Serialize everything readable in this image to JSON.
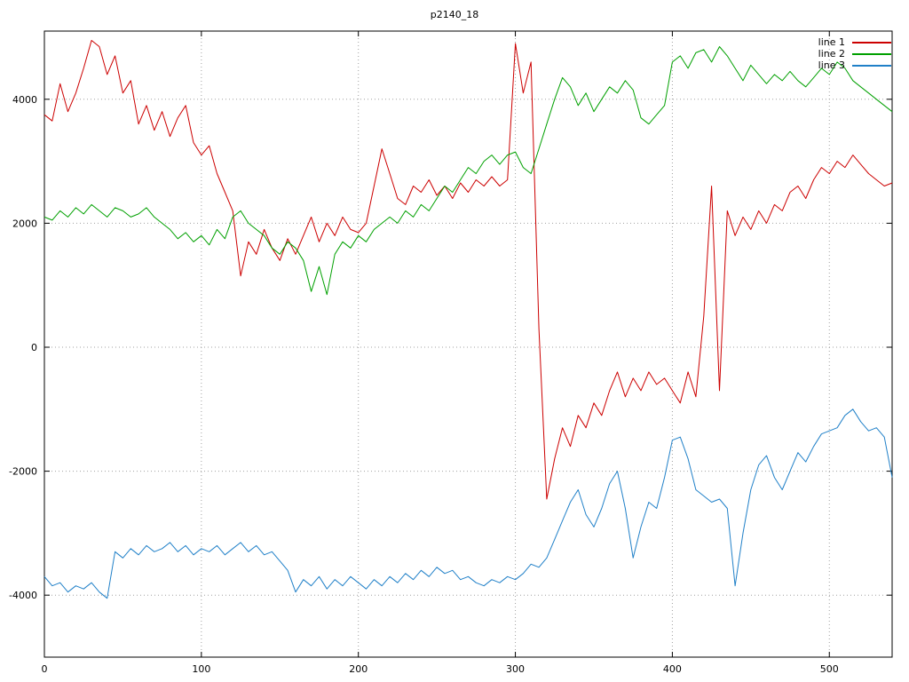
{
  "chart_data": {
    "type": "line",
    "title": "p2140_18",
    "xlabel": "",
    "ylabel": "",
    "xlim": [
      0,
      540
    ],
    "ylim": [
      -5000,
      5100
    ],
    "x_ticks": [
      0,
      100,
      200,
      300,
      400,
      500
    ],
    "y_ticks": [
      -4000,
      -2000,
      0,
      2000,
      4000
    ],
    "grid": "dotted",
    "grid_color": "#a0a0a0",
    "border_color": "#000000",
    "background": "#ffffff",
    "legend_position": "top-right",
    "x_start": 0,
    "x_step": 5,
    "series": [
      {
        "name": "line 1",
        "color": "#cc0000",
        "values": [
          3750,
          3650,
          4250,
          3800,
          4100,
          4500,
          4950,
          4850,
          4400,
          4700,
          4100,
          4300,
          3600,
          3900,
          3500,
          3800,
          3400,
          3700,
          3900,
          3300,
          3100,
          3250,
          2800,
          2500,
          2200,
          1150,
          1700,
          1500,
          1900,
          1600,
          1400,
          1750,
          1500,
          1800,
          2100,
          1700,
          2000,
          1800,
          2100,
          1900,
          1850,
          2000,
          2600,
          3200,
          2800,
          2400,
          2300,
          2600,
          2500,
          2700,
          2450,
          2600,
          2400,
          2650,
          2500,
          2700,
          2600,
          2750,
          2600,
          2700,
          4900,
          4100,
          4600,
          300,
          -2450,
          -1800,
          -1300,
          -1600,
          -1100,
          -1300,
          -900,
          -1100,
          -700,
          -400,
          -800,
          -500,
          -700,
          -400,
          -600,
          -500,
          -700,
          -900,
          -400,
          -800,
          500,
          2600,
          -700,
          2200,
          1800,
          2100,
          1900,
          2200,
          2000,
          2300,
          2200,
          2500,
          2600,
          2400,
          2700,
          2900,
          2800,
          3000,
          2900,
          3100,
          2950,
          2800,
          2700,
          2600,
          2650
        ]
      },
      {
        "name": "line 2",
        "color": "#00a000",
        "values": [
          2100,
          2050,
          2200,
          2100,
          2250,
          2150,
          2300,
          2200,
          2100,
          2250,
          2200,
          2100,
          2150,
          2250,
          2100,
          2000,
          1900,
          1750,
          1850,
          1700,
          1800,
          1650,
          1900,
          1750,
          2100,
          2200,
          2000,
          1900,
          1800,
          1600,
          1500,
          1700,
          1600,
          1400,
          900,
          1300,
          850,
          1500,
          1700,
          1600,
          1800,
          1700,
          1900,
          2000,
          2100,
          2000,
          2200,
          2100,
          2300,
          2200,
          2400,
          2600,
          2500,
          2700,
          2900,
          2800,
          3000,
          3100,
          2950,
          3100,
          3150,
          2900,
          2800,
          3200,
          3600,
          4000,
          4350,
          4200,
          3900,
          4100,
          3800,
          4000,
          4200,
          4100,
          4300,
          4150,
          3700,
          3600,
          3750,
          3900,
          4600,
          4700,
          4500,
          4750,
          4800,
          4600,
          4850,
          4700,
          4500,
          4300,
          4550,
          4400,
          4250,
          4400,
          4300,
          4450,
          4300,
          4200,
          4350,
          4500,
          4400,
          4600,
          4500,
          4300,
          4200,
          4100,
          4000,
          3900,
          3800
        ]
      },
      {
        "name": "line 3",
        "color": "#2080c8",
        "values": [
          -3700,
          -3850,
          -3800,
          -3950,
          -3850,
          -3900,
          -3800,
          -3950,
          -4050,
          -3300,
          -3400,
          -3250,
          -3350,
          -3200,
          -3300,
          -3250,
          -3150,
          -3300,
          -3200,
          -3350,
          -3250,
          -3300,
          -3200,
          -3350,
          -3250,
          -3150,
          -3300,
          -3200,
          -3350,
          -3300,
          -3450,
          -3600,
          -3950,
          -3750,
          -3850,
          -3700,
          -3900,
          -3750,
          -3850,
          -3700,
          -3800,
          -3900,
          -3750,
          -3850,
          -3700,
          -3800,
          -3650,
          -3750,
          -3600,
          -3700,
          -3550,
          -3650,
          -3600,
          -3750,
          -3700,
          -3800,
          -3850,
          -3750,
          -3800,
          -3700,
          -3750,
          -3650,
          -3500,
          -3550,
          -3400,
          -3100,
          -2800,
          -2500,
          -2300,
          -2700,
          -2900,
          -2600,
          -2200,
          -2000,
          -2600,
          -3400,
          -2900,
          -2500,
          -2600,
          -2100,
          -1500,
          -1450,
          -1800,
          -2300,
          -2400,
          -2500,
          -2450,
          -2600,
          -3850,
          -3000,
          -2300,
          -1900,
          -1750,
          -2100,
          -2300,
          -2000,
          -1700,
          -1850,
          -1600,
          -1400,
          -1350,
          -1300,
          -1100,
          -1000,
          -1200,
          -1350,
          -1300,
          -1450,
          -2100
        ]
      }
    ]
  }
}
